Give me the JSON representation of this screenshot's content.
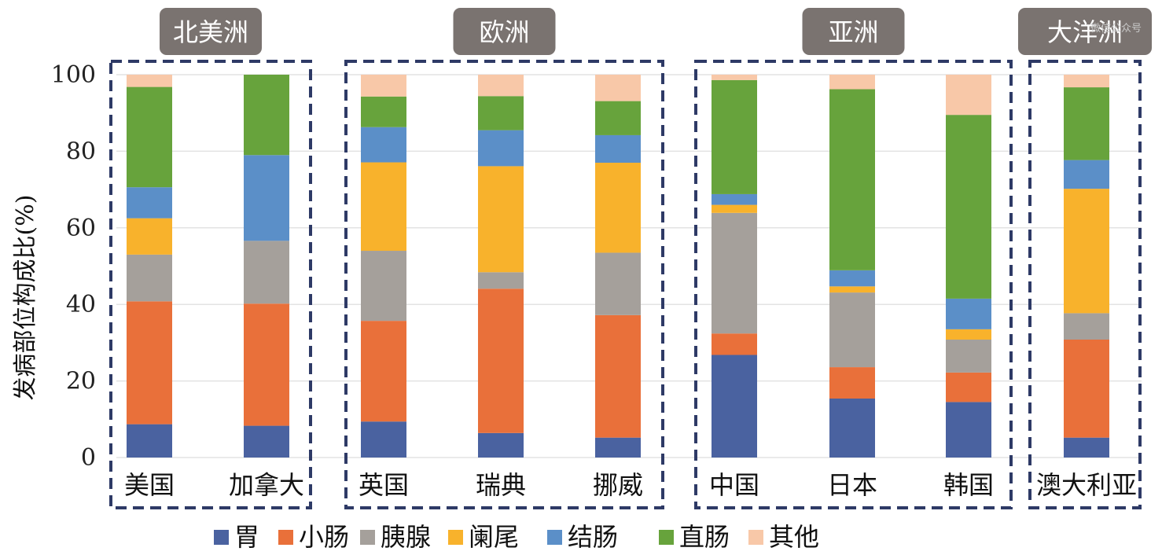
{
  "chart_data": {
    "type": "bar",
    "stacked": true,
    "ylabel": "发病部位构成比(%)",
    "ylim": [
      0,
      100
    ],
    "yticks": [
      0,
      20,
      40,
      60,
      80,
      100
    ],
    "grid": true,
    "legend_position": "bottom",
    "regions": [
      {
        "name": "北美洲",
        "categories": [
          "美国",
          "加拿大"
        ]
      },
      {
        "name": "欧洲",
        "categories": [
          "英国",
          "瑞典",
          "挪威"
        ]
      },
      {
        "name": "亚洲",
        "categories": [
          "中国",
          "日本",
          "韩国"
        ]
      },
      {
        "name": "大洋洲",
        "categories": [
          "澳大利亚"
        ]
      }
    ],
    "categories": [
      "美国",
      "加拿大",
      "英国",
      "瑞典",
      "挪威",
      "中国",
      "日本",
      "韩国",
      "澳大利亚"
    ],
    "series": [
      {
        "name": "胃",
        "color": "#4a62a0",
        "values": [
          8.7,
          8.3,
          9.4,
          6.4,
          5.2,
          26.8,
          15.4,
          14.5,
          5.2
        ]
      },
      {
        "name": "小肠",
        "color": "#e9703a",
        "values": [
          32.1,
          31.9,
          26.3,
          37.7,
          32.0,
          5.6,
          8.2,
          7.7,
          25.6
        ]
      },
      {
        "name": "胰腺",
        "color": "#a5a09b",
        "values": [
          12.2,
          16.4,
          18.3,
          4.3,
          16.3,
          31.5,
          19.5,
          8.6,
          6.9
        ]
      },
      {
        "name": "阑尾",
        "color": "#f8b22c",
        "values": [
          9.5,
          0,
          23.1,
          27.7,
          23.5,
          2.1,
          1.6,
          2.7,
          32.5
        ]
      },
      {
        "name": "结肠",
        "color": "#5b8fc8",
        "values": [
          8.1,
          22.4,
          9.2,
          9.4,
          7.2,
          2.8,
          4.2,
          8.0,
          7.5
        ]
      },
      {
        "name": "直肠",
        "color": "#67a33c",
        "values": [
          26.2,
          21.0,
          8.0,
          8.9,
          8.9,
          29.8,
          47.3,
          48.0,
          19.0
        ]
      },
      {
        "name": "其他",
        "color": "#f8c8a8",
        "values": [
          3.2,
          0,
          5.7,
          5.6,
          6.9,
          1.4,
          3.8,
          10.5,
          3.3
        ]
      }
    ]
  },
  "watermark": "微信公众号"
}
